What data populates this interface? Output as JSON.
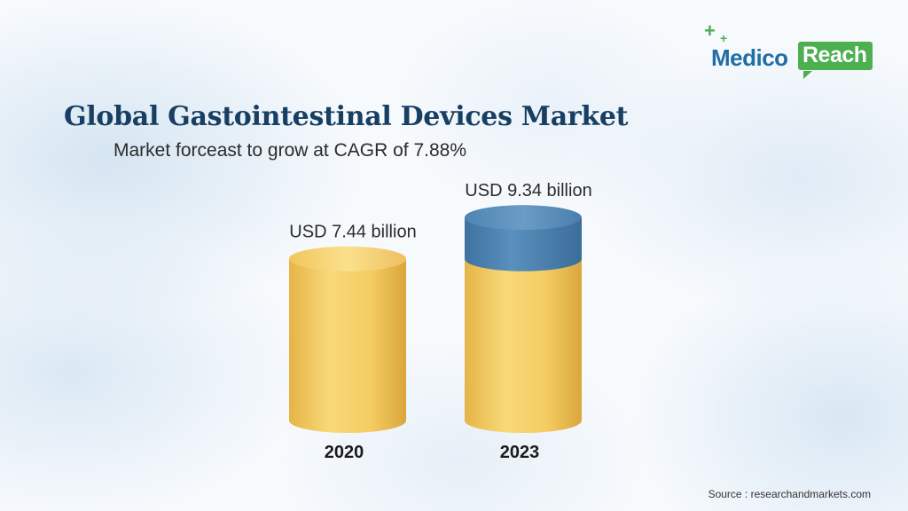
{
  "brand": {
    "name_part1": "Medico",
    "name_part2": "Reach",
    "icon": "plus-icon",
    "colors": {
      "blue": "#1f6fa5",
      "green": "#4caf50"
    }
  },
  "chart_data": {
    "type": "bar",
    "style": "cylinder",
    "title": "Global Gastointestinal Devices Market",
    "subtitle": "Market forceast to grow at CAGR of 7.88%",
    "categories": [
      "2020",
      "2023"
    ],
    "values": [
      7.44,
      9.34
    ],
    "data_labels": [
      "USD 7.44 billion",
      "USD 9.34 billion"
    ],
    "unit": "USD billion",
    "growth_segment": {
      "from": 7.44,
      "to": 9.34
    },
    "grid": false,
    "legend": "none",
    "colors": {
      "bar": "#f3c95c",
      "growth": "#4f83b0",
      "title": "#173e63"
    }
  },
  "source": "Source : researchandmarkets.com"
}
